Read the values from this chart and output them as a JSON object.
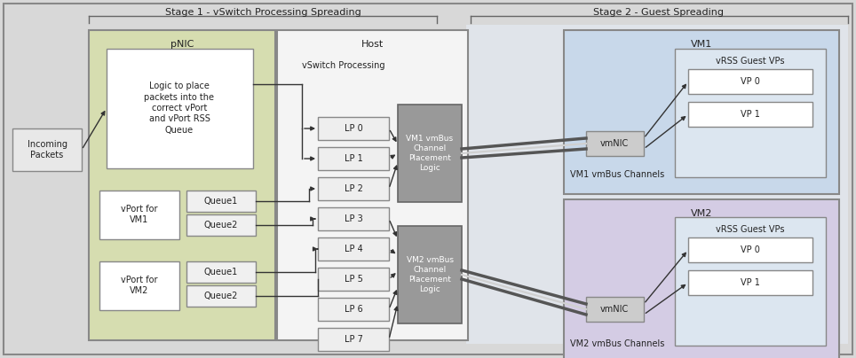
{
  "stage1_label": "Stage 1 - vSwitch Processing Spreading",
  "stage2_label": "Stage 2 - Guest Spreading",
  "pnic_label": "pNIC",
  "host_label": "Host",
  "vm1_label": "VM1",
  "vm2_label": "VM2",
  "incoming_label": "Incoming\nPackets",
  "logic_label": "Logic to place\npackets into the\ncorrect vPort\nand vPort RSS\nQueue",
  "vswitch_label": "vSwitch Processing",
  "vm1_vmbus_label": "VM1 vmBus\nChannel\nPlacement\nLogic",
  "vm2_vmbus_label": "VM2 vmBus\nChannel\nPlacement\nLogic",
  "vm1_channels_label": "VM1 vmBus Channels",
  "vm2_channels_label": "VM2 vmBus Channels",
  "vmnic_label": "vmNIC",
  "vrss_label": "vRSS Guest VPs",
  "vport_vm1_label": "vPort for\nVM1",
  "vport_vm2_label": "vPort for\nVM2",
  "queue1_label": "Queue1",
  "queue2_label": "Queue2",
  "lp_labels": [
    "LP 0",
    "LP 1",
    "LP 2",
    "LP 3",
    "LP 4",
    "LP 5",
    "LP 6",
    "LP 7"
  ],
  "vp0_label": "VP 0",
  "vp1_label": "VP 1",
  "bg_color": "#d8d8d8",
  "pnic_fill": "#d6ddb0",
  "pnic_border": "#888888",
  "host_fill": "#f4f4f4",
  "host_border": "#888888",
  "vm1_fill": "#c8d8ea",
  "vm1_border": "#888888",
  "vm2_fill": "#d4cce4",
  "vm2_border": "#888888",
  "logic_fill": "#ffffff",
  "logic_border": "#888888",
  "lp_fill": "#eeeeee",
  "lp_border": "#888888",
  "vmbus_fill": "#999999",
  "vmbus_border": "#666666",
  "vmnic_fill": "#cccccc",
  "vmnic_border": "#888888",
  "vrss_fill": "#dce6f0",
  "vrss_border": "#888888",
  "vp_fill": "#ffffff",
  "vp_border": "#888888",
  "queue_fill": "#f0f0f0",
  "queue_border": "#888888",
  "incoming_fill": "#e8e8e8",
  "incoming_border": "#888888",
  "stage2_bg": "#e8e8e8",
  "arrow_color": "#333333",
  "font_size": 7,
  "title_font_size": 8
}
